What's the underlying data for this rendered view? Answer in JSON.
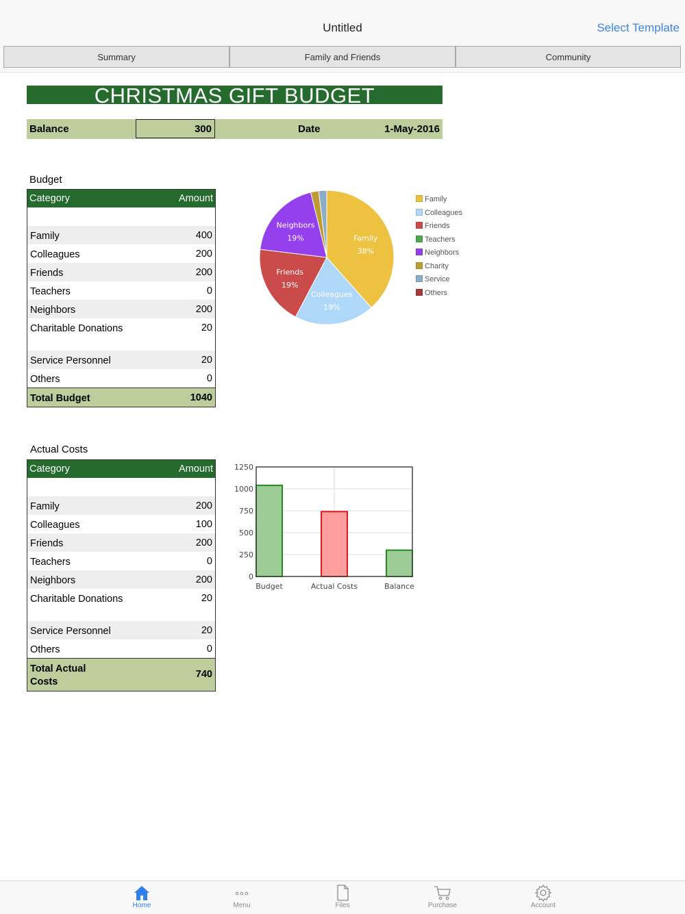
{
  "nav": {
    "title": "Untitled",
    "right_button": "Select Template"
  },
  "tabs": [
    {
      "label": "Summary"
    },
    {
      "label": "Family and Friends"
    },
    {
      "label": "Community"
    }
  ],
  "sheet": {
    "title": "CHRISTMAS GIFT BUDGET",
    "balance_label": "Balance",
    "balance_value": "300",
    "date_label": "Date",
    "date_value": "1-May-2016"
  },
  "budget": {
    "section_title": "Budget",
    "header_category": "Category",
    "header_amount": "Amount",
    "rows": [
      {
        "category": "Family",
        "amount": "400"
      },
      {
        "category": "Colleagues",
        "amount": "200"
      },
      {
        "category": "Friends",
        "amount": "200"
      },
      {
        "category": "Teachers",
        "amount": "0"
      },
      {
        "category": "Neighbors",
        "amount": "200"
      },
      {
        "category": "Charitable Donations",
        "amount": "20"
      },
      {
        "category": "Service Personnel",
        "amount": "20"
      },
      {
        "category": "Others",
        "amount": "0"
      }
    ],
    "total_label": "Total Budget",
    "total_value": "1040"
  },
  "actual": {
    "section_title": "Actual Costs",
    "header_category": "Category",
    "header_amount": "Amount",
    "rows": [
      {
        "category": "Family",
        "amount": "200"
      },
      {
        "category": "Colleagues",
        "amount": "100"
      },
      {
        "category": "Friends",
        "amount": "200"
      },
      {
        "category": "Teachers",
        "amount": "0"
      },
      {
        "category": "Neighbors",
        "amount": "200"
      },
      {
        "category": "Charitable Donations",
        "amount": "20"
      },
      {
        "category": "Service Personnel",
        "amount": "20"
      },
      {
        "category": "Others",
        "amount": "0"
      }
    ],
    "total_label": "Total Actual Costs",
    "total_value": "740"
  },
  "chart_data": [
    {
      "type": "pie",
      "legend_position": "right",
      "slices": [
        {
          "name": "Family",
          "value": 400,
          "label": "38%",
          "color": "#edc240"
        },
        {
          "name": "Colleagues",
          "value": 200,
          "label": "19%",
          "color": "#afd8f8"
        },
        {
          "name": "Friends",
          "value": 200,
          "label": "19%",
          "color": "#cb4b4b"
        },
        {
          "name": "Teachers",
          "value": 0,
          "color": "#4da74d"
        },
        {
          "name": "Neighbors",
          "value": 200,
          "label": "19%",
          "color": "#9440ed"
        },
        {
          "name": "Charity",
          "value": 20,
          "color": "#bd9b33"
        },
        {
          "name": "Service",
          "value": 20,
          "color": "#8cacc6"
        },
        {
          "name": "Others",
          "value": 0,
          "color": "#a23c3c"
        }
      ]
    },
    {
      "type": "bar",
      "categories": [
        "Budget",
        "Actual Costs",
        "Balance"
      ],
      "values": [
        1040,
        740,
        300
      ],
      "colors": [
        {
          "fill": "#9dcc96",
          "stroke": "#1f8a1f"
        },
        {
          "fill": "#ff9c9c",
          "stroke": "#e0191c"
        },
        {
          "fill": "#9dcc96",
          "stroke": "#1f8a1f"
        }
      ],
      "yticks": [
        0,
        250,
        500,
        750,
        1000,
        1250
      ],
      "ylim": [
        0,
        1250
      ],
      "grid": true
    }
  ],
  "bottom_tabs": [
    {
      "label": "Home",
      "icon": "home-icon",
      "active": true
    },
    {
      "label": "Menu",
      "icon": "more-dots-icon",
      "active": false
    },
    {
      "label": "Files",
      "icon": "file-icon",
      "active": false
    },
    {
      "label": "Purchase",
      "icon": "cart-icon",
      "active": false
    },
    {
      "label": "Account",
      "icon": "gear-icon",
      "active": false
    }
  ]
}
